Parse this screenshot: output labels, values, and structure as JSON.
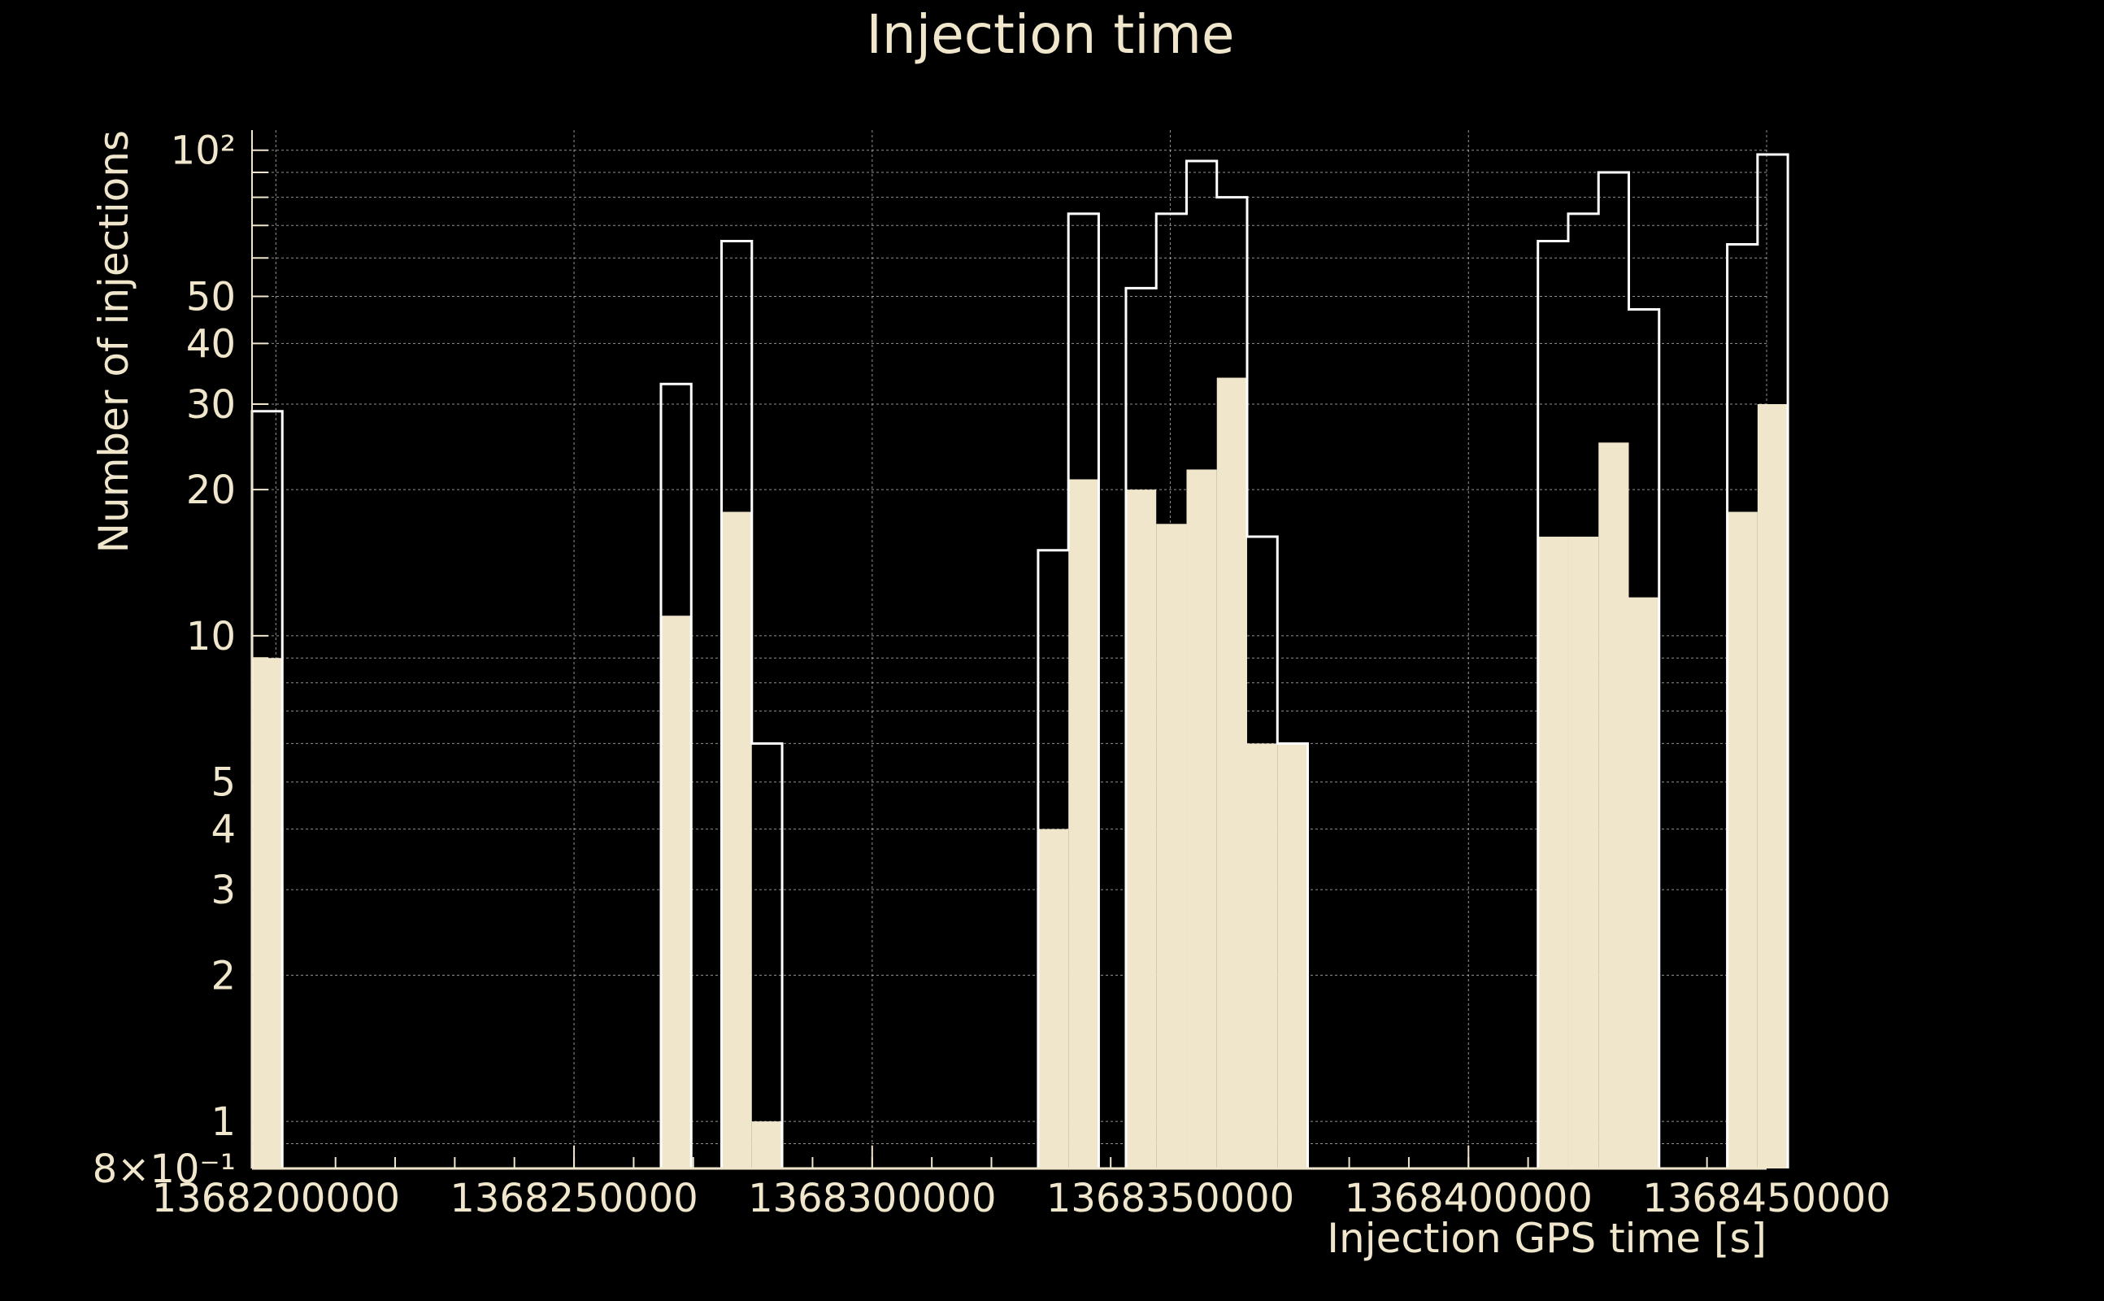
{
  "chart_data": {
    "type": "bar",
    "title": "Injection time",
    "xlabel": "Injection GPS time [s]",
    "ylabel": "Number of injections",
    "x_scale": "linear",
    "y_scale": "log",
    "xlim": [
      1368196000,
      1368450000
    ],
    "ylim": [
      0.8,
      110
    ],
    "grid": true,
    "x_ticks": [
      1368200000,
      1368250000,
      1368300000,
      1368350000,
      1368400000,
      1368450000
    ],
    "x_tick_labels": [
      "1368200000",
      "1368250000",
      "1368300000",
      "1368350000",
      "1368400000",
      "1368450000"
    ],
    "y_ticks": [
      0.8,
      1,
      2,
      3,
      4,
      5,
      10,
      20,
      30,
      40,
      50,
      100
    ],
    "y_tick_labels": [
      "8×10⁻¹",
      "1",
      "2",
      "3",
      "4",
      "5",
      "10",
      "20",
      "30",
      "40",
      "50",
      "10²"
    ],
    "bin_width": 5080,
    "series": [
      {
        "style": "outline",
        "color": "#ffffff",
        "x_bins": [
          1368196000,
          1368264580,
          1368274740,
          1368279820,
          1368327830,
          1368332910,
          1368342560,
          1368347640,
          1368352720,
          1368357800,
          1368362880,
          1368367960,
          1368411650,
          1368416730,
          1368421810,
          1368426890,
          1368443400,
          1368448480
        ],
        "values": [
          29,
          33,
          65,
          6,
          15,
          74,
          52,
          74,
          95,
          80,
          16,
          6,
          65,
          74,
          90,
          47,
          64,
          98
        ]
      },
      {
        "style": "filled",
        "color": "#f0e6cc",
        "x_bins": [
          1368196000,
          1368264580,
          1368274740,
          1368279820,
          1368327830,
          1368332910,
          1368342560,
          1368347640,
          1368352720,
          1368357800,
          1368362880,
          1368367960,
          1368411650,
          1368416730,
          1368421810,
          1368426890,
          1368443400,
          1368448480
        ],
        "values": [
          9,
          11,
          18,
          1,
          4,
          21,
          20,
          17,
          22,
          34,
          6,
          6,
          16,
          16,
          25,
          12,
          18,
          30
        ]
      }
    ]
  }
}
